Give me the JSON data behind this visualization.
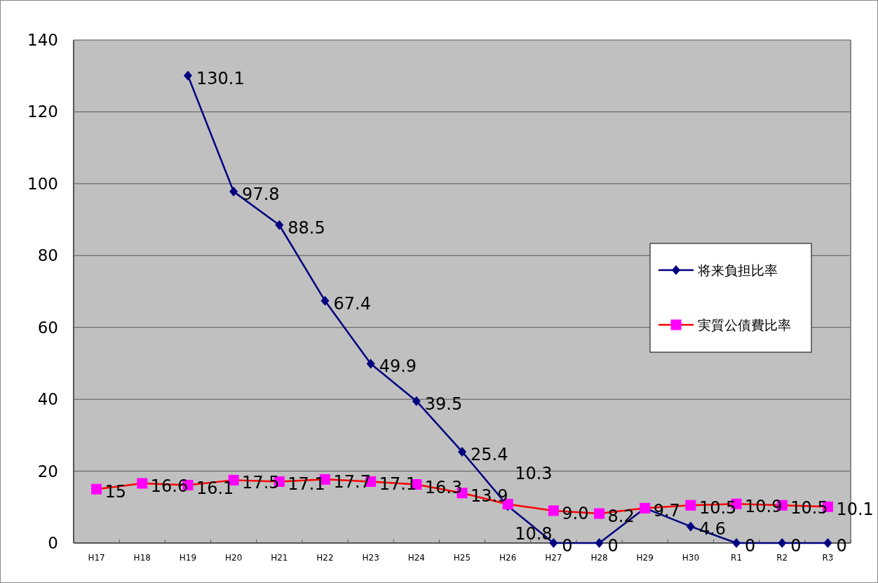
{
  "chart_data": {
    "type": "line",
    "categories": [
      "H17",
      "H18",
      "H19",
      "H20",
      "H21",
      "H22",
      "H23",
      "H24",
      "H25",
      "H26",
      "H27",
      "H28",
      "H29",
      "H30",
      "R1",
      "R2",
      "R3"
    ],
    "series": [
      {
        "name": "将来負担比率",
        "color": "#000080",
        "marker": "diamond",
        "values": [
          null,
          null,
          130.1,
          97.8,
          88.5,
          67.4,
          49.9,
          39.5,
          25.4,
          10.3,
          0,
          0,
          9.7,
          4.6,
          0,
          0,
          0
        ],
        "value_labels": [
          null,
          null,
          "130.1",
          "97.8",
          "88.5",
          "67.4",
          "49.9",
          "39.5",
          "25.4",
          "10.3",
          "0",
          "0",
          null,
          "4.6",
          "0",
          "0",
          "0"
        ]
      },
      {
        "name": "実質公債費比率",
        "color": "#ff0000",
        "marker": "square",
        "values": [
          15,
          16.6,
          16.1,
          17.5,
          17.1,
          17.7,
          17.1,
          16.3,
          13.9,
          10.8,
          9.0,
          8.2,
          9.7,
          10.5,
          10.9,
          10.5,
          10.1
        ],
        "value_labels": [
          "15",
          "16.6",
          "16.1",
          "17.5",
          "17.1",
          "17.7",
          "17.1",
          "16.3",
          "13.9",
          "10.8",
          "9.0",
          "8.2",
          "9.7",
          "10.5",
          "10.9",
          "10.5",
          "10.1"
        ]
      }
    ],
    "ylim": [
      0,
      140
    ],
    "yticks": [
      0,
      20,
      40,
      60,
      80,
      100,
      120,
      140
    ],
    "grid": "y",
    "legend": "right"
  }
}
